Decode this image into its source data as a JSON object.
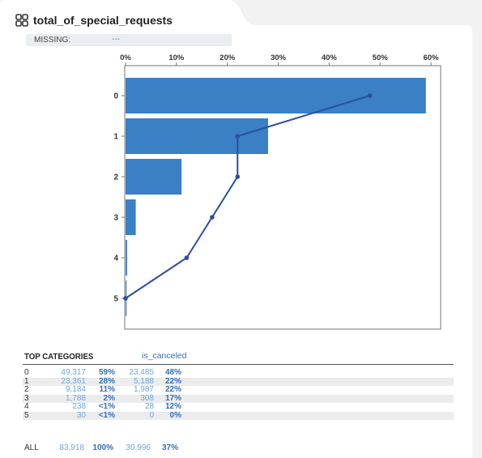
{
  "header": {
    "title": "total_of_special_requests",
    "missing_label": "MISSING:",
    "missing_value": "---"
  },
  "colors": {
    "bar": "#3b7fc4",
    "line": "#2b4ea3",
    "accent": "#2e6fc0",
    "muted_accent": "#6ba6e0"
  },
  "chart_data": {
    "type": "bar",
    "orientation": "horizontal",
    "categories": [
      "0",
      "1",
      "2",
      "3",
      "4",
      "5"
    ],
    "series": [
      {
        "values": [
          59,
          28,
          11,
          2,
          0.3,
          0.04
        ]
      },
      {
        "type": "line",
        "values": [
          48,
          22,
          22,
          17,
          12,
          0
        ]
      }
    ],
    "xlim": [
      0,
      60
    ],
    "x_ticks": [
      "0%",
      "10%",
      "20%",
      "30%",
      "40%",
      "50%",
      "60%"
    ],
    "x_axis_position": "top",
    "grid": false
  },
  "table": {
    "title": "TOP CATEGORIES",
    "column_label": "is_canceled",
    "rows": [
      {
        "cat": "0",
        "count": "49,317",
        "pct": "59%",
        "canc": "23,485",
        "canc_pct": "48%"
      },
      {
        "cat": "1",
        "count": "23,361",
        "pct": "28%",
        "canc": "5,188",
        "canc_pct": "22%"
      },
      {
        "cat": "2",
        "count": "9,184",
        "pct": "11%",
        "canc": "1,987",
        "canc_pct": "22%"
      },
      {
        "cat": "3",
        "count": "1,788",
        "pct": "2%",
        "canc": "308",
        "canc_pct": "17%"
      },
      {
        "cat": "4",
        "count": "238",
        "pct": "<1%",
        "canc": "28",
        "canc_pct": "12%"
      },
      {
        "cat": "5",
        "count": "30",
        "pct": "<1%",
        "canc": "0",
        "canc_pct": "0%"
      }
    ],
    "total": {
      "cat": "ALL",
      "count": "83,918",
      "pct": "100%",
      "canc": "30,996",
      "canc_pct": "37%"
    }
  }
}
